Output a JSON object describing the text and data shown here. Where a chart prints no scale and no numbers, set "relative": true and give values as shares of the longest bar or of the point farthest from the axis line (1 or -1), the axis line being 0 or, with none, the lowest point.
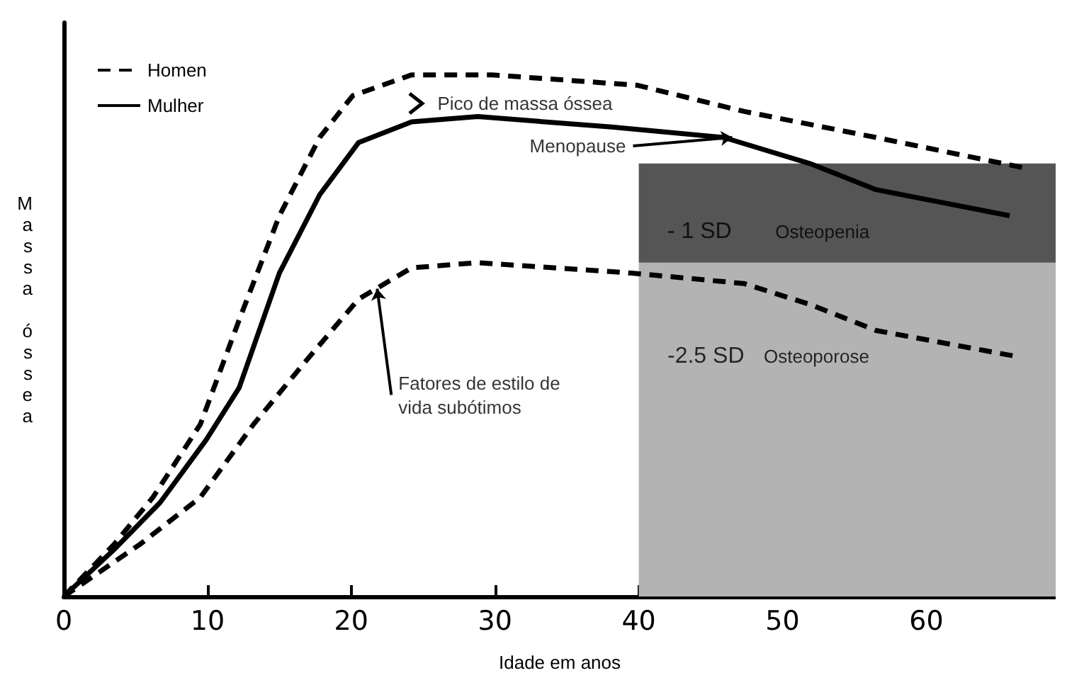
{
  "chart_data": {
    "type": "line",
    "relative": true,
    "xlabel": "Idade em anos",
    "ylabel": "Massa óssea",
    "xlim": [
      0,
      69
    ],
    "xticks": [
      0,
      10,
      20,
      30,
      40,
      50,
      60
    ],
    "grid": false,
    "legend": "top left",
    "marker": "none",
    "series": [
      {
        "name": "Homen",
        "color": "#000000",
        "line_style": "dashed",
        "x": [
          0,
          3.5,
          6.2,
          9.5,
          12.2,
          15,
          17.8,
          20.1,
          24.2,
          29.8,
          39.9,
          47.3,
          56.5,
          67.1
        ],
        "values": [
          0,
          0.1,
          0.19,
          0.33,
          0.53,
          0.73,
          0.88,
          0.96,
          1,
          1,
          0.98,
          0.93,
          0.88,
          0.82
        ]
      },
      {
        "name": "Mulher",
        "color": "#000000",
        "line_style": "solid",
        "x": [
          0,
          3.5,
          6.7,
          9.9,
          12.2,
          15,
          17.8,
          20.5,
          24.2,
          28.8,
          38.1,
          45.9,
          51.9,
          56.5,
          65.8
        ],
        "values": [
          0,
          0.09,
          0.18,
          0.3,
          0.4,
          0.62,
          0.77,
          0.87,
          0.91,
          0.92,
          0.9,
          0.88,
          0.83,
          0.78,
          0.73
        ]
      },
      {
        "color": "#000000",
        "line_style": "dashed",
        "x": [
          0,
          5.3,
          9.5,
          13.2,
          16.8,
          20.5,
          24.2,
          28.8,
          39.5,
          47.3,
          51.9,
          56.5,
          66.3
        ],
        "values": [
          0,
          0.1,
          0.19,
          0.33,
          0.45,
          0.57,
          0.63,
          0.64,
          0.62,
          0.6,
          0.56,
          0.51,
          0.46
        ]
      }
    ],
    "bands": [
      {
        "axis": "x",
        "from": 40,
        "to": 69,
        "color": "#b3b3b3"
      },
      {
        "axis": "y",
        "from": 0.64,
        "to": 0.83,
        "color": "#555555"
      }
    ],
    "annotations": [
      "Pico de massa óssea",
      {
        "text": "Menopause",
        "x": 46.5,
        "y": 0.88
      },
      {
        "text": "Fatores de estilo de\nvida subótimos",
        "x": 21.8,
        "y": 0.59
      },
      "- 1 SD",
      "Osteopenia",
      "-2.5 SD",
      "Osteoporose"
    ]
  }
}
